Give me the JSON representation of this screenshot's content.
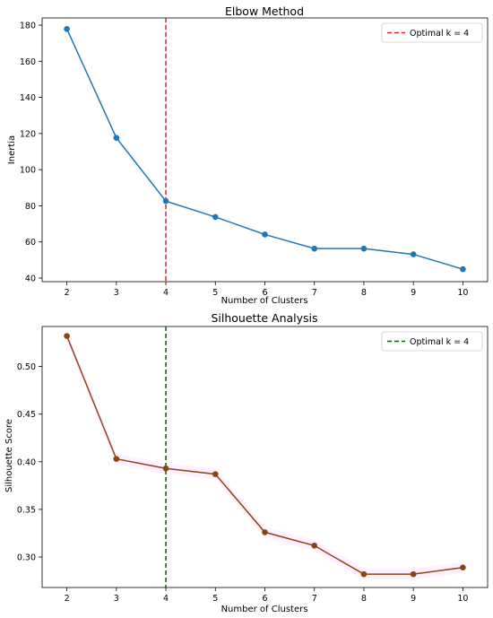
{
  "chart_data": [
    {
      "type": "line",
      "title": "Elbow Method",
      "xlabel": "Number of Clusters",
      "ylabel": "Inertia",
      "x": [
        2,
        3,
        4,
        5,
        6,
        7,
        8,
        9,
        10
      ],
      "series": [
        {
          "values": [
            177.9,
            117.6,
            82.6,
            73.8,
            64.1,
            56.3,
            56.3,
            53.1,
            44.9
          ],
          "color": "#1f77b4",
          "marker": "circle"
        }
      ],
      "xlim": [
        1.5,
        10.5
      ],
      "ylim": [
        38,
        184
      ],
      "xticks": [
        2,
        3,
        4,
        5,
        6,
        7,
        8,
        9,
        10
      ],
      "yticks": [
        40,
        60,
        80,
        100,
        120,
        140,
        160,
        180
      ],
      "xtick_labels": [
        "2",
        "3",
        "4",
        "5",
        "6",
        "7",
        "8",
        "9",
        "10"
      ],
      "ytick_labels": [
        "40",
        "60",
        "80",
        "100",
        "120",
        "140",
        "160",
        "180"
      ],
      "vline": {
        "x": 4,
        "color": "#d62728",
        "style": "dashed",
        "label": "Optimal k = 4"
      },
      "legend": {
        "position": "upper right"
      },
      "grid": false
    },
    {
      "type": "line",
      "title": "Silhouette Analysis",
      "xlabel": "Number of Clusters",
      "ylabel": "Silhouette Score",
      "x": [
        2,
        3,
        4,
        5,
        6,
        7,
        8,
        9,
        10
      ],
      "series": [
        {
          "values": [
            0.532,
            0.403,
            0.393,
            0.387,
            0.326,
            0.312,
            0.282,
            0.282,
            0.289
          ],
          "color": "#8b4513",
          "marker": "circle"
        }
      ],
      "xlim": [
        1.5,
        10.5
      ],
      "ylim": [
        0.268,
        0.542
      ],
      "xticks": [
        2,
        3,
        4,
        5,
        6,
        7,
        8,
        9,
        10
      ],
      "yticks": [
        0.3,
        0.35,
        0.4,
        0.45,
        0.5
      ],
      "xtick_labels": [
        "2",
        "3",
        "4",
        "5",
        "6",
        "7",
        "8",
        "9",
        "10"
      ],
      "ytick_labels": [
        "0.30",
        "0.35",
        "0.40",
        "0.45",
        "0.50"
      ],
      "vline": {
        "x": 4,
        "color": "#006400",
        "style": "dashed",
        "label": "Optimal k = 4"
      },
      "legend": {
        "position": "upper right"
      },
      "grid": false,
      "band": {
        "color": "#ff00ff",
        "opacity": 0.06
      }
    }
  ]
}
